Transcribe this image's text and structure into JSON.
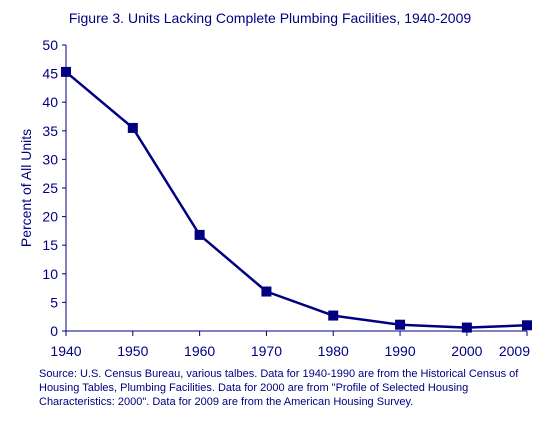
{
  "chart_data": {
    "type": "line",
    "title": "Figure 3. Units Lacking Complete Plumbing Facilities, 1940-2009",
    "xlabel": "",
    "ylabel": "Percent of All Units",
    "x": [
      "1940",
      "1950",
      "1960",
      "1970",
      "1980",
      "1990",
      "2000",
      "2009"
    ],
    "x_values": [
      1940,
      1950,
      1960,
      1970,
      1980,
      1990,
      2000,
      2009
    ],
    "series": [
      {
        "values": [
          45.3,
          35.5,
          16.8,
          6.9,
          2.7,
          1.1,
          0.6,
          1.0
        ]
      }
    ],
    "ylim": [
      0,
      50
    ],
    "yticks": [
      0,
      5,
      10,
      15,
      20,
      25,
      30,
      35,
      40,
      45,
      50
    ],
    "grid": false,
    "legend": "none",
    "colors": {
      "line": "#000080",
      "marker": "#000080",
      "text": "#000080"
    }
  },
  "footer": {
    "source": "Source: U.S. Census Bureau, various talbes.  Data for 1940-1990 are from the Historical Census of Housing Tables, Plumbing Facilities.  Data for 2000 are from \"Profile of Selected Housing Characteristics: 2000\".  Data for 2009 are from the American Housing Survey."
  }
}
